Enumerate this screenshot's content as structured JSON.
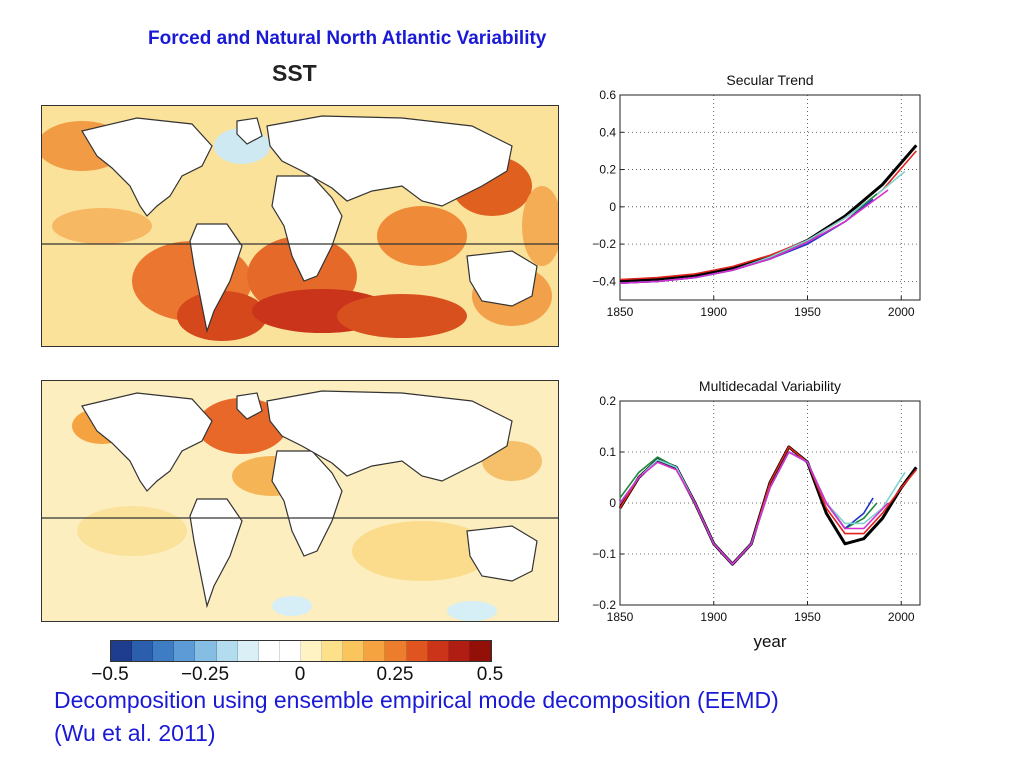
{
  "slide": {
    "title": "Forced and Natural North Atlantic Variability",
    "map_label": "SST",
    "caption_line1": "Decomposition using ensemble empirical  mode decomposition (EEMD)",
    "caption_line2": "(Wu et al. 2011)"
  },
  "colorbar": {
    "tick_labels": [
      "−0.5",
      "−0.25",
      "0",
      "0.25",
      "0.5"
    ],
    "tick_values": [
      -0.5,
      -0.25,
      0,
      0.25,
      0.5
    ],
    "colors": [
      "#1f3d8f",
      "#2b5fae",
      "#3e7cc4",
      "#5c9bd6",
      "#86bde3",
      "#b3dcef",
      "#daf0f6",
      "#ffffff",
      "#ffffff",
      "#fff3c4",
      "#fde08a",
      "#f9c55c",
      "#f4a340",
      "#ec7d2c",
      "#e0541f",
      "#cc3419",
      "#b01d12",
      "#931008"
    ]
  },
  "maps": [
    {
      "name": "secular-trend-sst-map",
      "equator": true
    },
    {
      "name": "multidecadal-sst-map",
      "equator": true
    }
  ],
  "chart_data": [
    {
      "type": "line",
      "title": "Secular Trend",
      "xlabel": "",
      "ylabel": "",
      "xlim": [
        1850,
        2010
      ],
      "ylim": [
        -0.5,
        0.6
      ],
      "xticks": [
        1850,
        1900,
        1950,
        2000
      ],
      "yticks": [
        -0.4,
        -0.2,
        0,
        0.2,
        0.4,
        0.6
      ],
      "ytick_labels": [
        "−0.4",
        "−0.2",
        "0",
        "0.2",
        "0.4",
        "0.6"
      ],
      "grid": true,
      "series": [
        {
          "name": "black",
          "color": "#000000",
          "x": [
            1850,
            1870,
            1890,
            1910,
            1930,
            1950,
            1970,
            1990,
            2008
          ],
          "y": [
            -0.4,
            -0.39,
            -0.37,
            -0.33,
            -0.27,
            -0.18,
            -0.05,
            0.12,
            0.33
          ]
        },
        {
          "name": "red",
          "color": "#e0241c",
          "x": [
            1850,
            1870,
            1890,
            1910,
            1930,
            1950,
            1970,
            1990,
            2008
          ],
          "y": [
            -0.39,
            -0.38,
            -0.36,
            -0.32,
            -0.26,
            -0.18,
            -0.06,
            0.09,
            0.3
          ]
        },
        {
          "name": "cyan",
          "color": "#7fd3cf",
          "x": [
            1850,
            1870,
            1890,
            1910,
            1930,
            1950,
            1970,
            1990,
            2002
          ],
          "y": [
            -0.41,
            -0.4,
            -0.38,
            -0.34,
            -0.27,
            -0.18,
            -0.06,
            0.09,
            0.19
          ]
        },
        {
          "name": "green",
          "color": "#1d8a3a",
          "x": [
            1850,
            1870,
            1890,
            1910,
            1930,
            1950,
            1970,
            1987
          ],
          "y": [
            -0.41,
            -0.4,
            -0.38,
            -0.34,
            -0.28,
            -0.19,
            -0.08,
            0.07
          ]
        },
        {
          "name": "blue",
          "color": "#2035c8",
          "x": [
            1850,
            1870,
            1890,
            1910,
            1930,
            1950,
            1970,
            1985
          ],
          "y": [
            -0.41,
            -0.4,
            -0.38,
            -0.34,
            -0.28,
            -0.2,
            -0.08,
            0.04
          ]
        },
        {
          "name": "magenta",
          "color": "#d62fd0",
          "x": [
            1850,
            1870,
            1890,
            1910,
            1930,
            1950,
            1970,
            1993
          ],
          "y": [
            -0.41,
            -0.4,
            -0.38,
            -0.34,
            -0.28,
            -0.19,
            -0.08,
            0.09
          ]
        }
      ]
    },
    {
      "type": "line",
      "title": "Multidecadal Variability",
      "xlabel": "year",
      "ylabel": "",
      "xlim": [
        1850,
        2010
      ],
      "ylim": [
        -0.2,
        0.2
      ],
      "xticks": [
        1850,
        1900,
        1950,
        2000
      ],
      "yticks": [
        -0.2,
        -0.1,
        0,
        0.1,
        0.2
      ],
      "ytick_labels": [
        "−0.2",
        "−0.1",
        "0",
        "0.1",
        "0.2"
      ],
      "grid": true,
      "series": [
        {
          "name": "black",
          "color": "#000000",
          "x": [
            1850,
            1860,
            1870,
            1880,
            1890,
            1900,
            1910,
            1920,
            1930,
            1940,
            1950,
            1960,
            1970,
            1980,
            1990,
            2000,
            2008
          ],
          "y": [
            -0.01,
            0.05,
            0.085,
            0.07,
            0.0,
            -0.08,
            -0.12,
            -0.08,
            0.04,
            0.11,
            0.08,
            -0.02,
            -0.08,
            -0.07,
            -0.03,
            0.03,
            0.07
          ]
        },
        {
          "name": "red",
          "color": "#e0241c",
          "x": [
            1850,
            1860,
            1870,
            1880,
            1890,
            1900,
            1910,
            1920,
            1930,
            1940,
            1950,
            1960,
            1970,
            1980,
            1990,
            2000,
            2008
          ],
          "y": [
            -0.01,
            0.05,
            0.085,
            0.07,
            0.0,
            -0.08,
            -0.12,
            -0.08,
            0.04,
            0.11,
            0.08,
            -0.01,
            -0.06,
            -0.06,
            -0.02,
            0.03,
            0.065
          ]
        },
        {
          "name": "green",
          "color": "#1d8a3a",
          "x": [
            1850,
            1860,
            1870,
            1880,
            1890,
            1900,
            1910,
            1920,
            1930,
            1940,
            1950,
            1960,
            1970,
            1980,
            1987
          ],
          "y": [
            0.01,
            0.06,
            0.09,
            0.07,
            0.0,
            -0.08,
            -0.12,
            -0.08,
            0.03,
            0.1,
            0.08,
            0.0,
            -0.05,
            -0.03,
            0.0
          ]
        },
        {
          "name": "blue",
          "color": "#2035c8",
          "x": [
            1850,
            1860,
            1870,
            1880,
            1890,
            1900,
            1910,
            1920,
            1930,
            1940,
            1950,
            1960,
            1970,
            1980,
            1985
          ],
          "y": [
            0.0,
            0.05,
            0.085,
            0.07,
            0.0,
            -0.08,
            -0.12,
            -0.08,
            0.03,
            0.1,
            0.08,
            0.0,
            -0.05,
            -0.02,
            0.01
          ]
        },
        {
          "name": "cyan",
          "color": "#7fd3cf",
          "x": [
            1850,
            1860,
            1870,
            1880,
            1890,
            1900,
            1910,
            1920,
            1930,
            1940,
            1950,
            1960,
            1970,
            1980,
            1990,
            2002
          ],
          "y": [
            0.0,
            0.05,
            0.085,
            0.07,
            0.0,
            -0.08,
            -0.12,
            -0.08,
            0.03,
            0.1,
            0.08,
            0.0,
            -0.04,
            -0.04,
            -0.01,
            0.06
          ]
        },
        {
          "name": "magenta",
          "color": "#d62fd0",
          "x": [
            1850,
            1860,
            1870,
            1880,
            1890,
            1900,
            1910,
            1920,
            1930,
            1940,
            1950,
            1960,
            1970,
            1980,
            1993
          ],
          "y": [
            0.0,
            0.05,
            0.08,
            0.065,
            0.0,
            -0.08,
            -0.12,
            -0.08,
            0.03,
            0.1,
            0.08,
            0.0,
            -0.05,
            -0.05,
            0.0
          ]
        }
      ]
    }
  ]
}
